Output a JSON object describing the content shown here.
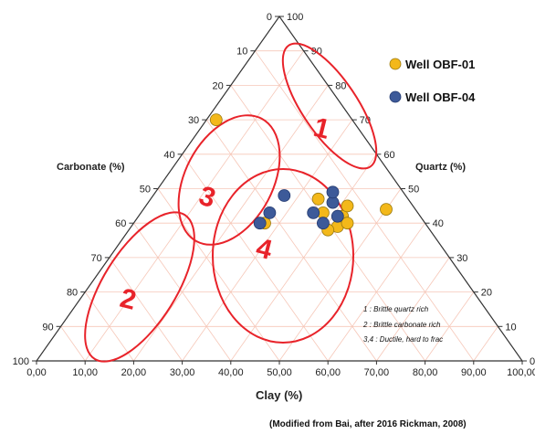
{
  "chart_data": {
    "type": "scatter",
    "subtype": "ternary",
    "axes": {
      "clay": {
        "label": "Clay (%)",
        "ticks": [
          "0,00",
          "10,00",
          "20,00",
          "30,00",
          "40,00",
          "50,00",
          "60,00",
          "70,00",
          "80,00",
          "90,00",
          "100,00"
        ],
        "range": [
          0,
          100
        ]
      },
      "carbonate": {
        "label": "Carbonate (%)",
        "ticks": [
          "0",
          "10",
          "20",
          "30",
          "40",
          "50",
          "60",
          "70",
          "80",
          "90",
          "100"
        ],
        "range": [
          0,
          100
        ]
      },
      "quartz": {
        "label": "Quartz (%)",
        "ticks": [
          "100",
          "90",
          "80",
          "70",
          "60",
          "50",
          "40",
          "30",
          "20",
          "10",
          "0"
        ],
        "range": [
          0,
          100
        ]
      }
    },
    "grid": true,
    "legend_position": "top-right",
    "series": [
      {
        "name": "Well OBF-01",
        "color": "#f3b81a",
        "points": [
          {
            "clay": 37,
            "carbonate": 30,
            "quartz": 33
          },
          {
            "clay": 47,
            "carbonate": 60,
            "quartz": -7
          },
          {
            "clay": 58,
            "carbonate": 53,
            "quartz": -11
          },
          {
            "clay": 59,
            "carbonate": 57,
            "quartz": -16
          },
          {
            "clay": 62,
            "carbonate": 61,
            "quartz": -23
          },
          {
            "clay": 63,
            "carbonate": 58,
            "quartz": -21
          },
          {
            "clay": 64,
            "carbonate": 60,
            "quartz": -24
          },
          {
            "clay": 64,
            "carbonate": 55,
            "quartz": -19
          },
          {
            "clay": 60,
            "carbonate": 62,
            "quartz": -22
          },
          {
            "clay": 72,
            "carbonate": 56,
            "quartz": -28
          }
        ]
      },
      {
        "name": "Well OBF-04",
        "color": "#3d5a99",
        "points": [
          {
            "clay": 48,
            "carbonate": 57,
            "quartz": -5
          },
          {
            "clay": 46,
            "carbonate": 60,
            "quartz": -6
          },
          {
            "clay": 51,
            "carbonate": 52,
            "quartz": -3
          },
          {
            "clay": 57,
            "carbonate": 57,
            "quartz": -14
          },
          {
            "clay": 61,
            "carbonate": 54,
            "quartz": -15
          },
          {
            "clay": 61,
            "carbonate": 51,
            "quartz": -12
          },
          {
            "clay": 59,
            "carbonate": 60,
            "quartz": -19
          },
          {
            "clay": 62,
            "carbonate": 58,
            "quartz": -20
          }
        ]
      }
    ],
    "zones": [
      {
        "id": "1",
        "label": "1"
      },
      {
        "id": "2",
        "label": "2"
      },
      {
        "id": "3",
        "label": "3"
      },
      {
        "id": "4",
        "label": "4"
      }
    ],
    "notes": [
      "1 : Brittle quartz rich",
      "2 : Brittle carbonate rich",
      "3,4 : Ductile, hard to frac"
    ],
    "credit": "(Modified from Bai, after 2016 Rickman, 2008)"
  }
}
